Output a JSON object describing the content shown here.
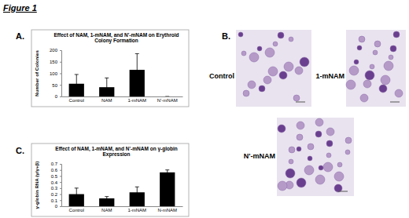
{
  "figure_label": "Figure 1",
  "panel_labels": [
    "A.",
    "B.",
    "C."
  ],
  "micrographs": {
    "labels": [
      "Control",
      "1-mNAM",
      "N'-mNAM"
    ]
  },
  "chart_data": [
    {
      "type": "bar",
      "title": "Effect of NAM, 1-mNAM, and N'-mNAM on Erythroid Colony Formation",
      "y_label": "Number of Colonies",
      "categories": [
        "Control",
        "NAM",
        "1-mNAM",
        "N'-mNAM"
      ],
      "values": [
        55,
        40,
        115,
        0
      ],
      "errors": [
        40,
        40,
        70,
        0
      ],
      "color": "#000000",
      "ylim": [
        0,
        200
      ],
      "yticks": [
        0,
        50,
        100,
        150,
        200
      ],
      "grid": false
    },
    {
      "type": "bar",
      "title": "Effect of NAM, 1-mNAM, and N'-mNAM on γ-globin Expression",
      "y_label": "γ-globin RNA (γ/γ+β)",
      "categories": [
        "Control",
        "NAM",
        "1-mNAM",
        "N-mNAM"
      ],
      "values": [
        0.2,
        0.13,
        0.23,
        0.56
      ],
      "errors": [
        0.1,
        0.03,
        0.09,
        0.04
      ],
      "color": "#000000",
      "ylim": [
        0,
        0.7
      ],
      "yticks": [
        0,
        0.1,
        0.2,
        0.3,
        0.4,
        0.5,
        0.6,
        0.7
      ],
      "grid": false
    }
  ]
}
